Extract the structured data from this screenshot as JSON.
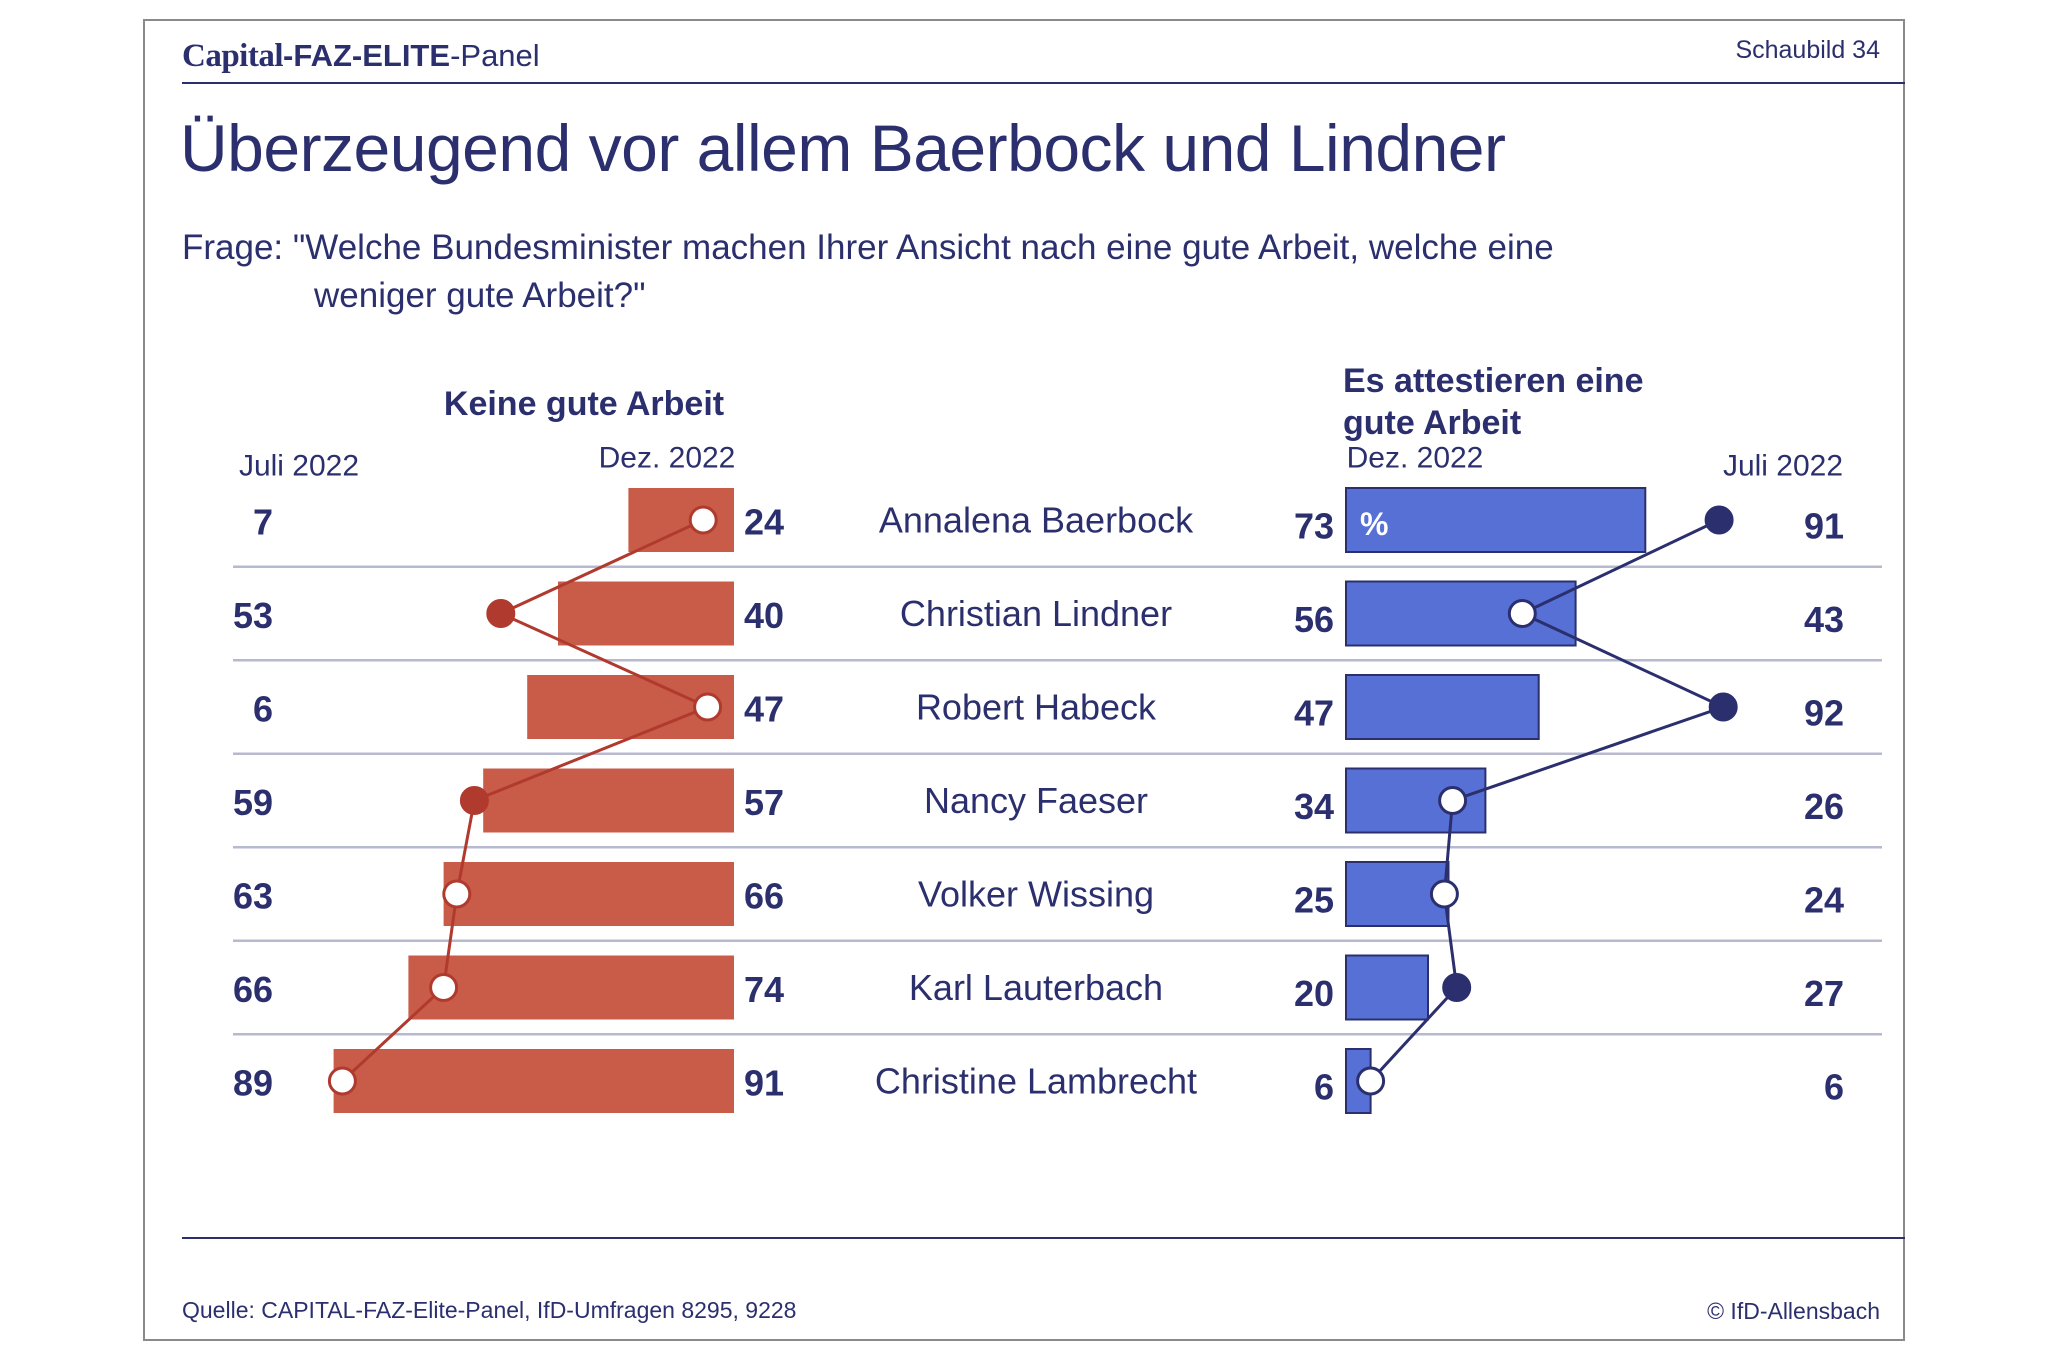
{
  "header": {
    "brand_capital": "Capital",
    "brand_faz": "-FAZ-ELITE",
    "brand_panel": "-Panel",
    "figure_number": "Schaubild 34"
  },
  "title": "Überzeugend vor allem Baerbock und Lindner",
  "question": {
    "line1": "Frage: \"Welche Bundesminister machen Ihrer Ansicht nach eine gute Arbeit, welche eine",
    "line2": "weniger gute Arbeit?\""
  },
  "footer": {
    "source": "Quelle: CAPITAL-FAZ-Elite-Panel, IfD-Umfragen 8295, 9228",
    "copyright": "© IfD-Allensbach"
  },
  "colors": {
    "negative_bar": "#c95c48",
    "negative_line": "#b03a2e",
    "positive_bar": "#5670d6",
    "positive_line": "#2b2f6e",
    "text": "#2b2f6e",
    "divider": "#b7b9cf"
  },
  "chart_data": {
    "type": "bar",
    "unit": "%",
    "categories": [
      "Annalena Baerbock",
      "Christian Lindner",
      "Robert Habeck",
      "Nancy Faeser",
      "Volker Wissing",
      "Karl Lauterbach",
      "Christine Lambrecht"
    ],
    "left_panel": {
      "title": "Keine gute Arbeit",
      "bar_period": "Dez. 2022",
      "marker_period": "Juli 2022",
      "dez_2022": [
        24,
        40,
        47,
        57,
        66,
        74,
        91
      ],
      "juli_2022": [
        7,
        53,
        6,
        59,
        63,
        66,
        89
      ]
    },
    "right_panel": {
      "title_line1": "Es attestieren eine",
      "title_line2": "gute Arbeit",
      "bar_period": "Dez. 2022",
      "marker_period": "Juli 2022",
      "dez_2022": [
        73,
        56,
        47,
        34,
        25,
        20,
        6
      ],
      "juli_2022": [
        91,
        43,
        92,
        26,
        24,
        27,
        6
      ]
    }
  }
}
